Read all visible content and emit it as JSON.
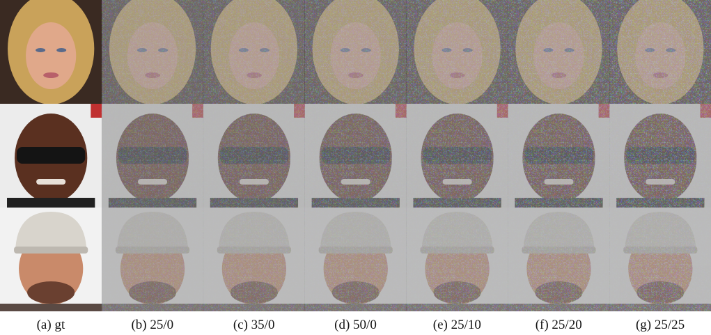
{
  "figure": {
    "captions": [
      "(a) gt",
      "(b) 25/0",
      "(c) 35/0",
      "(d) 50/0",
      "(e) 25/10",
      "(f) 25/20",
      "(g) 25/25"
    ]
  }
}
